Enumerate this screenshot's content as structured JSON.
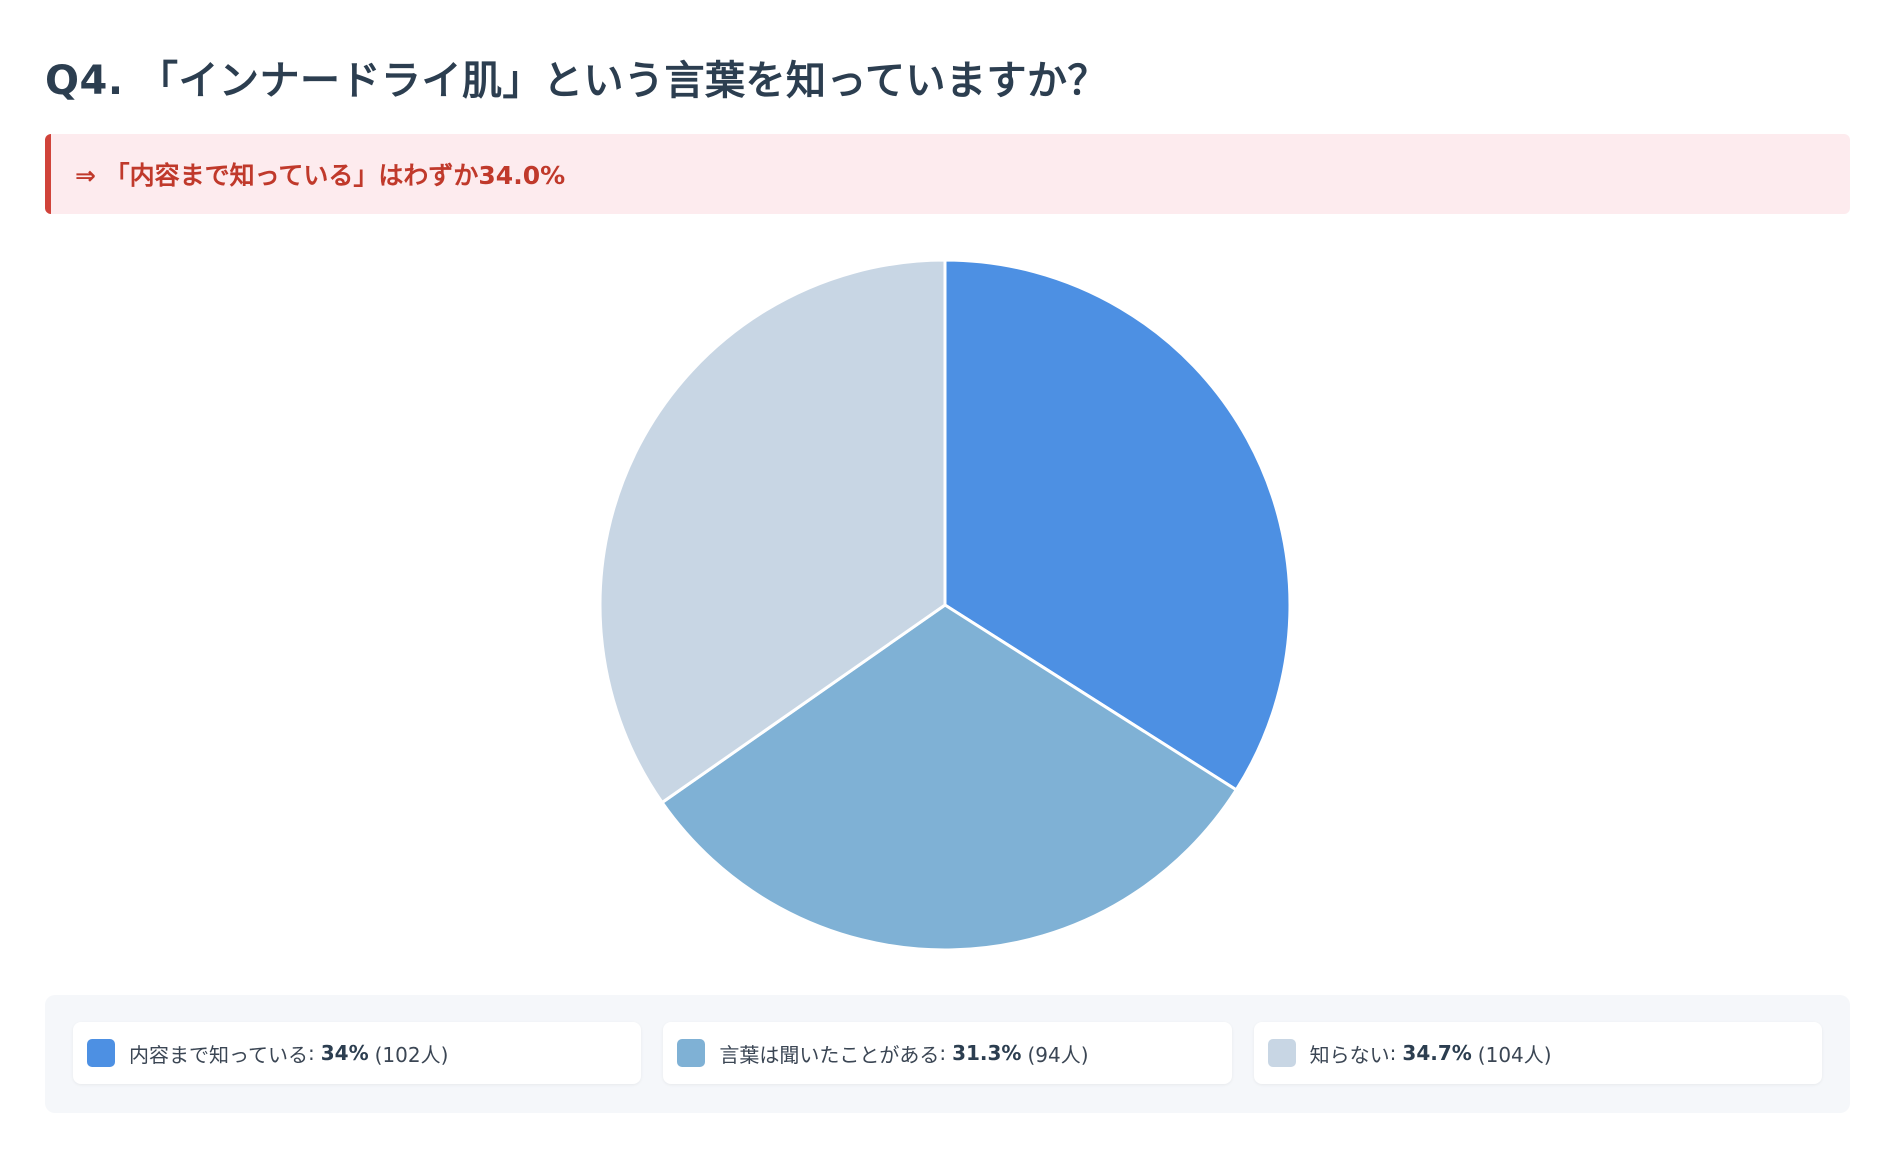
{
  "header": {
    "title": "Q4. 「インナードライ肌」という言葉を知っていますか？"
  },
  "callout": {
    "text": "⇒ 「内容まで知っている」はわずか34.0%"
  },
  "chart_data": {
    "type": "pie",
    "title": "",
    "legend": "bottom",
    "slices": [
      {
        "label": "内容まで知っている",
        "percent": 34,
        "percent_text": "34%",
        "count_text": "(102人)",
        "color": "#4d90e3"
      },
      {
        "label": "言葉は聞いたことがある",
        "percent": 31.3,
        "percent_text": "31.3%",
        "count_text": "(94人)",
        "color": "#7fb1d5"
      },
      {
        "label": "知らない",
        "percent": 34.7,
        "percent_text": "34.7%",
        "count_text": "(104人)",
        "color": "#c8d6e4"
      }
    ]
  }
}
